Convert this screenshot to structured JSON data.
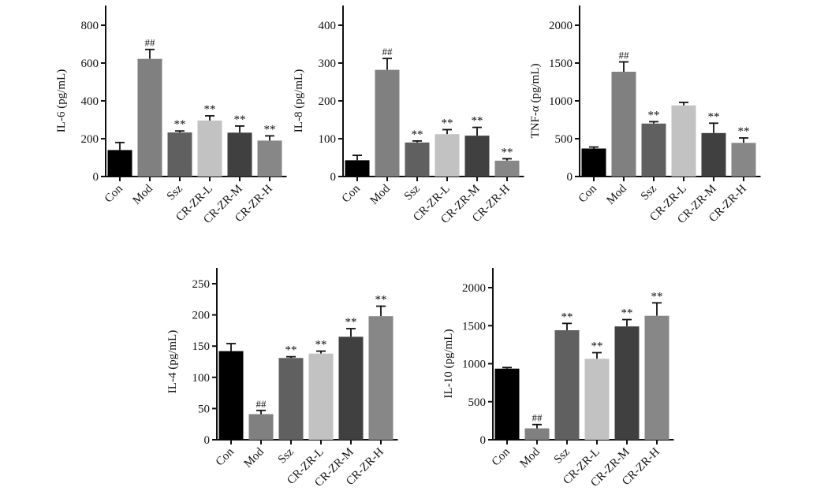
{
  "chart_data": [
    {
      "type": "bar",
      "title": "",
      "ylabel": "IL-6 (pg/mL)",
      "xlabel": "",
      "categories": [
        "Con",
        "Mod",
        "Ssz",
        "CR-ZR-L",
        "CR-ZR-M",
        "CR-ZR-H"
      ],
      "values": [
        140,
        622,
        233,
        296,
        232,
        190
      ],
      "errors": [
        40,
        50,
        8,
        25,
        35,
        25
      ],
      "annotations": [
        "",
        "##",
        "**",
        "**",
        "**",
        "**"
      ],
      "ylim": [
        0,
        800
      ],
      "yticks": [
        0,
        200,
        400,
        600,
        800
      ]
    },
    {
      "type": "bar",
      "title": "",
      "ylabel": "IL-8 (pg/mL)",
      "xlabel": "",
      "categories": [
        "Con",
        "Mod",
        "Ssz",
        "CR-ZR-L",
        "CR-ZR-M",
        "CR-ZR-H"
      ],
      "values": [
        43,
        282,
        90,
        112,
        108,
        42
      ],
      "errors": [
        13,
        30,
        4,
        12,
        22,
        5
      ],
      "annotations": [
        "",
        "##",
        "**",
        "**",
        "**",
        "**"
      ],
      "ylim": [
        0,
        400
      ],
      "yticks": [
        0,
        100,
        200,
        300,
        400
      ]
    },
    {
      "type": "bar",
      "title": "",
      "ylabel": "TNF-α (pg/mL)",
      "xlabel": "",
      "categories": [
        "Con",
        "Mod",
        "Ssz",
        "CR-ZR-L",
        "CR-ZR-M",
        "CR-ZR-H"
      ],
      "values": [
        370,
        1385,
        700,
        940,
        575,
        445
      ],
      "errors": [
        20,
        130,
        25,
        40,
        130,
        65
      ],
      "annotations": [
        "",
        "##",
        "**",
        "",
        "**",
        "**"
      ],
      "ylim": [
        0,
        2000
      ],
      "yticks": [
        0,
        500,
        1000,
        1500,
        2000
      ]
    },
    {
      "type": "bar",
      "title": "",
      "ylabel": "IL-4 (pg/mL)",
      "xlabel": "",
      "categories": [
        "Con",
        "Mod",
        "Ssz",
        "CR-ZR-L",
        "CR-ZR-M",
        "CR-ZR-H"
      ],
      "values": [
        142,
        41,
        131,
        138,
        165,
        198
      ],
      "errors": [
        12,
        6,
        2,
        4,
        13,
        16
      ],
      "annotations": [
        "",
        "##",
        "**",
        "**",
        "**",
        "**"
      ],
      "ylim": [
        0,
        250
      ],
      "yticks": [
        0,
        50,
        100,
        150,
        200,
        250
      ]
    },
    {
      "type": "bar",
      "title": "",
      "ylabel": "IL-10 (pg/mL)",
      "xlabel": "",
      "categories": [
        "Con",
        "Mod",
        "Ssz",
        "CR-ZR-L",
        "CR-ZR-M",
        "CR-ZR-H"
      ],
      "values": [
        935,
        150,
        1440,
        1065,
        1490,
        1630
      ],
      "errors": [
        15,
        50,
        90,
        80,
        90,
        170
      ],
      "annotations": [
        "",
        "##",
        "**",
        "**",
        "**",
        "**"
      ],
      "ylim": [
        0,
        2000
      ],
      "yticks": [
        0,
        500,
        1000,
        1500,
        2000
      ]
    }
  ],
  "bar_colors": [
    "#000000",
    "#808080",
    "#606060",
    "#c2c2c2",
    "#404040",
    "#878787"
  ]
}
